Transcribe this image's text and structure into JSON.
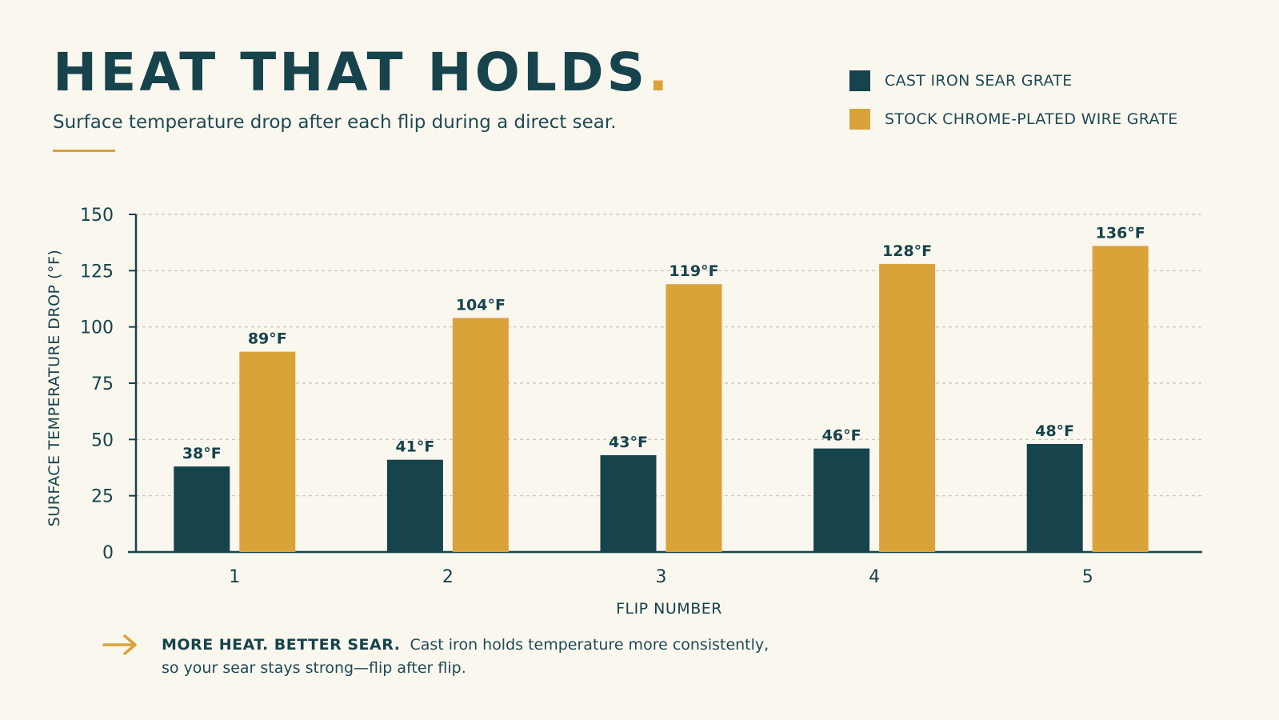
{
  "header": {
    "title": "HEAT THAT HOLDS",
    "title_accent": ".",
    "subtitle": "Surface temperature drop after each flip during a direct sear."
  },
  "colors": {
    "cast_iron": "#16434c",
    "stock": "#d9a33a",
    "accent": "#d9a33a",
    "grid": "#c9c2b4"
  },
  "chart_data": {
    "type": "bar",
    "categories": [
      "1",
      "2",
      "3",
      "4",
      "5"
    ],
    "series": [
      {
        "name": "CAST IRON SEAR GRATE",
        "values": [
          38,
          41,
          43,
          46,
          48
        ],
        "labels": [
          "38°F",
          "41°F",
          "43°F",
          "46°F",
          "48°F"
        ]
      },
      {
        "name": "STOCK CHROME-PLATED WIRE GRATE",
        "values": [
          89,
          104,
          119,
          128,
          136
        ],
        "labels": [
          "89°F",
          "104°F",
          "119°F",
          "128°F",
          "136°F"
        ]
      }
    ],
    "xlabel": "FLIP NUMBER",
    "ylabel": "SURFACE TEMPERATURE DROP (°F)",
    "ylim": [
      0,
      150
    ],
    "yticks": [
      0,
      25,
      50,
      75,
      100,
      125,
      150
    ],
    "grid": "horizontal dashed",
    "legend_position": "top-right"
  },
  "note": {
    "bold": "MORE HEAT. BETTER SEAR.",
    "text": "Cast iron holds temperature more consistently, so your sear stays strong—flip after flip.",
    "icon": "arrow-right-icon"
  }
}
